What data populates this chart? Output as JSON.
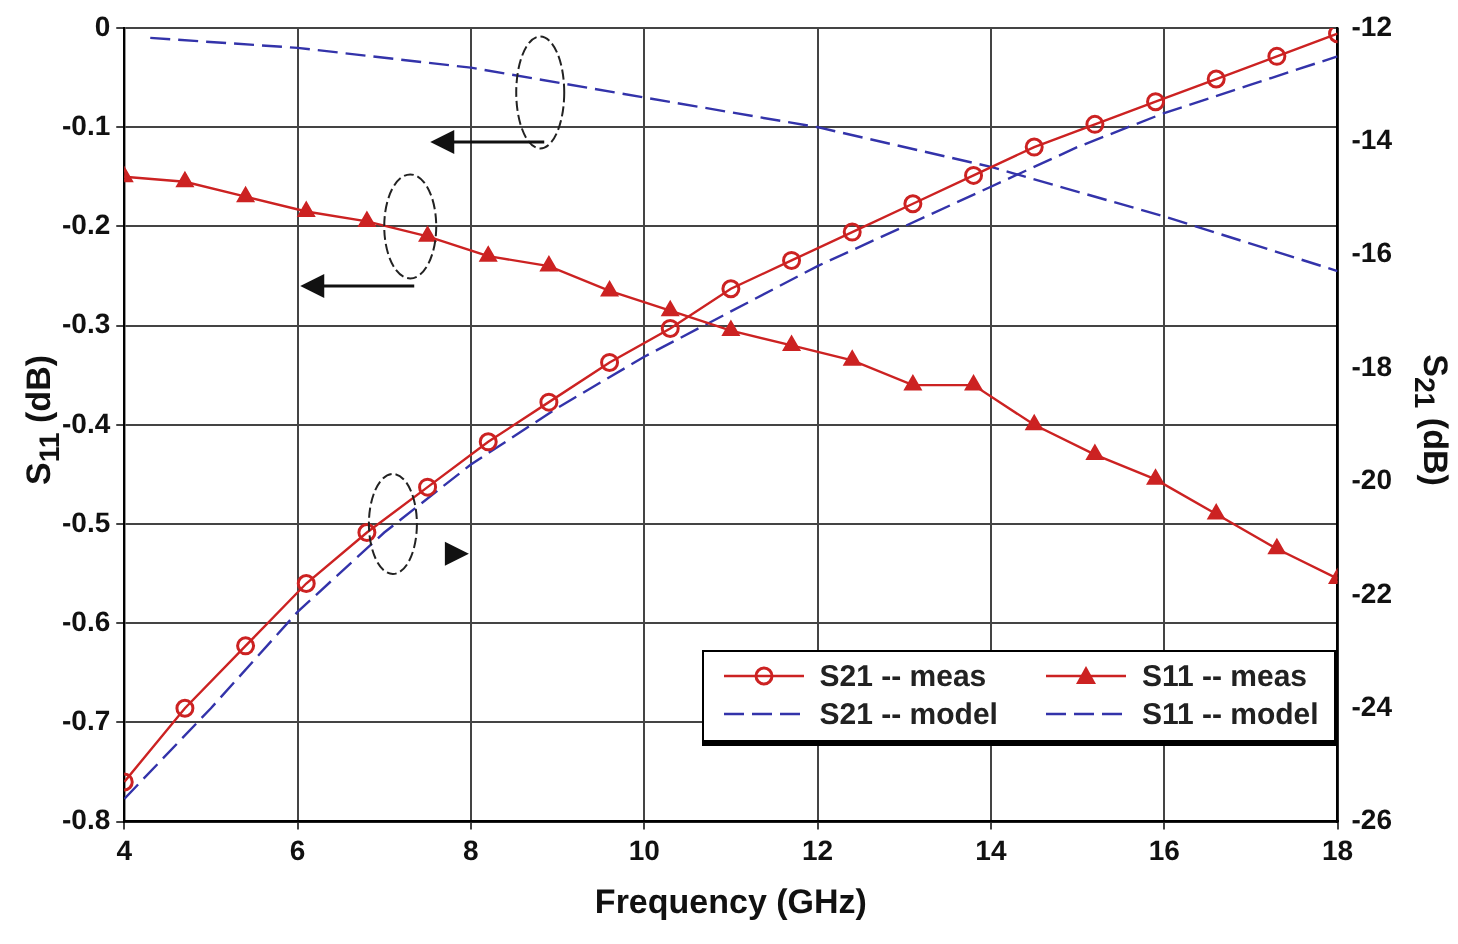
{
  "chart_data": {
    "type": "line",
    "xlabel": "Frequency (GHz)",
    "ylabel": "S$_{11}$ (dB)",
    "y2label": "S$_{21}$ (dB)",
    "xlim": [
      4,
      18
    ],
    "xticks": [
      4,
      6,
      8,
      10,
      12,
      14,
      16,
      18
    ],
    "ylim": [
      -0.8,
      0
    ],
    "yticks": [
      -0.8,
      -0.7,
      -0.6,
      -0.5,
      -0.4,
      -0.3,
      -0.2,
      -0.1,
      0
    ],
    "y2lim": [
      -26,
      -12
    ],
    "y2ticks": [
      -26,
      -24,
      -22,
      -20,
      -18,
      -16,
      -14,
      -12
    ],
    "grid": true,
    "legend": "bottom right",
    "series": [
      {
        "name": "S21 -- meas",
        "color": "#cc2222",
        "axis": "y2",
        "marker": "circle",
        "line_style": "solid",
        "x": [
          4,
          4.7,
          5.4,
          6.1,
          6.8,
          7.5,
          8.2,
          8.9,
          9.6,
          10.3,
          11,
          11.7,
          12.4,
          13.1,
          13.8,
          14.5,
          15.2,
          15.9,
          16.6,
          17.3,
          18
        ],
        "values": [
          -25.3,
          -24.0,
          -22.9,
          -21.8,
          -20.9,
          -20.1,
          -19.3,
          -18.6,
          -17.9,
          -17.3,
          -16.6,
          -16.1,
          -15.6,
          -15.1,
          -14.6,
          -14.1,
          -13.7,
          -13.3,
          -12.9,
          -12.5,
          -12.1
        ]
      },
      {
        "name": "S11 -- meas",
        "color": "#cc2222",
        "axis": "y",
        "marker": "triangle",
        "line_style": "solid",
        "x": [
          4,
          4.7,
          5.4,
          6.1,
          6.8,
          7.5,
          8.2,
          8.9,
          9.6,
          10.3,
          11,
          11.7,
          12.4,
          13.1,
          13.8,
          14.5,
          15.2,
          15.9,
          16.6,
          17.3,
          18
        ],
        "values": [
          -0.15,
          -0.155,
          -0.17,
          -0.185,
          -0.195,
          -0.21,
          -0.23,
          -0.24,
          -0.265,
          -0.285,
          -0.305,
          -0.32,
          -0.335,
          -0.36,
          -0.36,
          -0.4,
          -0.43,
          -0.455,
          -0.49,
          -0.525,
          -0.555
        ]
      },
      {
        "name": "S21 -- model",
        "color": "#3333aa",
        "axis": "y2",
        "marker": "none",
        "line_style": "dashed",
        "x": [
          4,
          5,
          6,
          7,
          8,
          9,
          10,
          11,
          12,
          13,
          14,
          15,
          16,
          17,
          18
        ],
        "values": [
          -25.6,
          -24.0,
          -22.3,
          -20.9,
          -19.7,
          -18.7,
          -17.8,
          -17.0,
          -16.2,
          -15.5,
          -14.8,
          -14.1,
          -13.5,
          -13.0,
          -12.5
        ]
      },
      {
        "name": "S11 -- model",
        "color": "#3333aa",
        "axis": "y",
        "marker": "none",
        "line_style": "dashed",
        "x": [
          4.3,
          6,
          8,
          10,
          12,
          14,
          16,
          18
        ],
        "values": [
          -0.01,
          -0.02,
          -0.04,
          -0.07,
          -0.1,
          -0.14,
          -0.19,
          -0.245
        ]
      }
    ]
  }
}
